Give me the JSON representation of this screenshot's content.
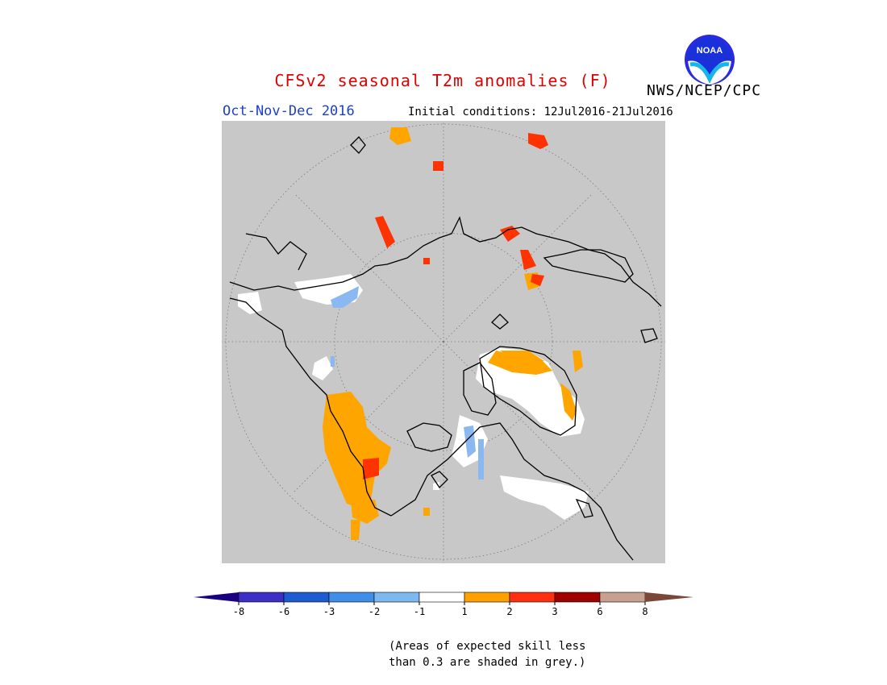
{
  "header": {
    "title": "CFSv2 seasonal T2m anomalies (F)",
    "agency": "NWS/NCEP/CPC",
    "logo_text": "NOAA",
    "season": "Oct-Nov-Dec 2016",
    "initial_conditions": "Initial conditions: 12Jul2016-21Jul2016"
  },
  "colors": {
    "title": "#e00000",
    "season": "#1a3fcf",
    "skill_mask": "#c8c8c8",
    "neutral": "#ffffff",
    "warm1": "#ffa500",
    "warm2": "#ff3300",
    "cold1": "#8ab8f0",
    "cold2": "#4a98e8"
  },
  "colorbar": {
    "ticks": [
      "-8",
      "-6",
      "-3",
      "-2",
      "-1",
      "1",
      "2",
      "3",
      "6",
      "8"
    ],
    "colors": [
      "#3d2ec6",
      "#1c5cd0",
      "#3f8fe8",
      "#7db8f0",
      "#ffffff",
      "#ffa000",
      "#ff3010",
      "#a00000",
      "#c8a090"
    ],
    "under_color": "#1a0080",
    "over_color": "#7a4838"
  },
  "footnote": {
    "line1": "(Areas of expected skill less",
    "line2": "than 0.3 are shaded in grey.)"
  }
}
